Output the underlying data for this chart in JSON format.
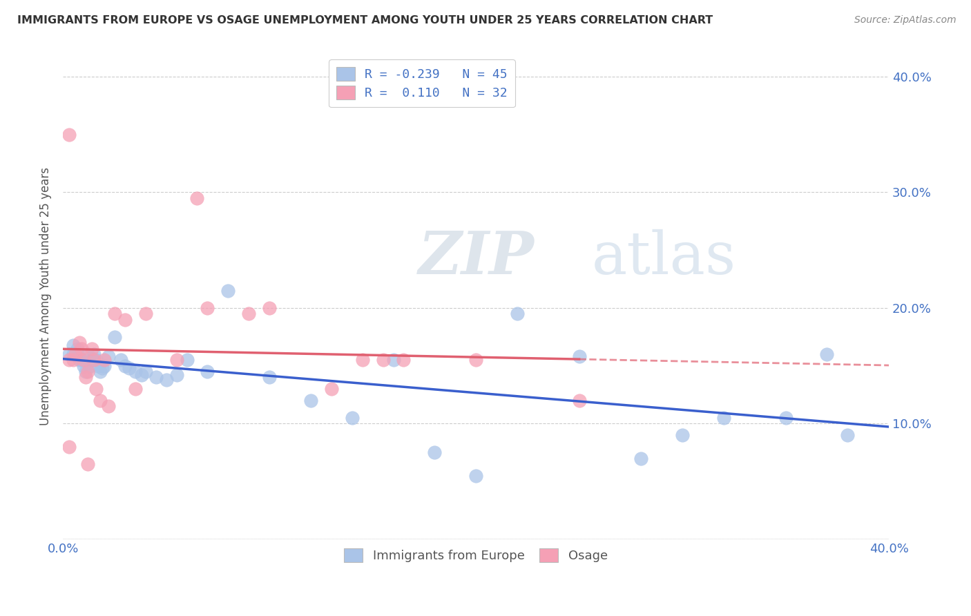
{
  "title": "IMMIGRANTS FROM EUROPE VS OSAGE UNEMPLOYMENT AMONG YOUTH UNDER 25 YEARS CORRELATION CHART",
  "source": "Source: ZipAtlas.com",
  "ylabel": "Unemployment Among Youth under 25 years",
  "x_min": 0.0,
  "x_max": 0.4,
  "y_min": 0.0,
  "y_max": 0.42,
  "legend_blue_label": "Immigrants from Europe",
  "legend_pink_label": "Osage",
  "r_blue": -0.239,
  "n_blue": 45,
  "r_pink": 0.11,
  "n_pink": 32,
  "blue_color": "#aac4e8",
  "pink_color": "#f5a0b5",
  "blue_line_color": "#3a5fcd",
  "pink_line_color": "#e06070",
  "watermark_zip": "ZIP",
  "watermark_atlas": "atlas",
  "blue_scatter_x": [
    0.003,
    0.005,
    0.007,
    0.008,
    0.009,
    0.01,
    0.011,
    0.012,
    0.013,
    0.014,
    0.015,
    0.016,
    0.017,
    0.018,
    0.019,
    0.02,
    0.022,
    0.025,
    0.028,
    0.03,
    0.032,
    0.035,
    0.038,
    0.04,
    0.045,
    0.05,
    0.055,
    0.06,
    0.07,
    0.08,
    0.1,
    0.12,
    0.14,
    0.16,
    0.18,
    0.2,
    0.22,
    0.25,
    0.28,
    0.3,
    0.32,
    0.35,
    0.37,
    0.38,
    0.005
  ],
  "blue_scatter_y": [
    0.16,
    0.16,
    0.165,
    0.155,
    0.155,
    0.15,
    0.145,
    0.16,
    0.15,
    0.155,
    0.16,
    0.155,
    0.15,
    0.145,
    0.148,
    0.15,
    0.158,
    0.175,
    0.155,
    0.15,
    0.148,
    0.145,
    0.142,
    0.145,
    0.14,
    0.138,
    0.142,
    0.155,
    0.145,
    0.215,
    0.14,
    0.12,
    0.105,
    0.155,
    0.075,
    0.055,
    0.195,
    0.158,
    0.07,
    0.09,
    0.105,
    0.105,
    0.16,
    0.09,
    0.168
  ],
  "pink_scatter_x": [
    0.003,
    0.005,
    0.006,
    0.008,
    0.009,
    0.01,
    0.011,
    0.012,
    0.014,
    0.015,
    0.016,
    0.018,
    0.02,
    0.022,
    0.025,
    0.03,
    0.035,
    0.04,
    0.055,
    0.065,
    0.07,
    0.09,
    0.1,
    0.13,
    0.145,
    0.155,
    0.165,
    0.2,
    0.25,
    0.003,
    0.003,
    0.012
  ],
  "pink_scatter_y": [
    0.155,
    0.155,
    0.16,
    0.17,
    0.165,
    0.155,
    0.14,
    0.145,
    0.165,
    0.155,
    0.13,
    0.12,
    0.155,
    0.115,
    0.195,
    0.19,
    0.13,
    0.195,
    0.155,
    0.295,
    0.2,
    0.195,
    0.2,
    0.13,
    0.155,
    0.155,
    0.155,
    0.155,
    0.12,
    0.35,
    0.08,
    0.065
  ]
}
